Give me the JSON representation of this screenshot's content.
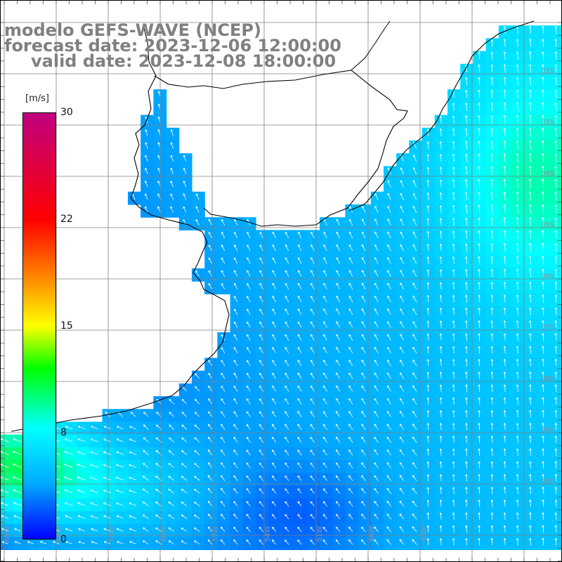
{
  "title_line1": "modelo GEFS-WAVE (NCEP)",
  "title_line2": "forecast date: 2023-12-06 12:00:00",
  "title_line3": "valid date: 2023-12-08 18:00:00",
  "colorbar": {
    "units": "[m/s]",
    "min": 0,
    "max": 30,
    "ticks": [
      {
        "value": 30,
        "label": "30"
      },
      {
        "value": 22,
        "label": "22"
      },
      {
        "value": 15,
        "label": "15"
      },
      {
        "value": 8,
        "label": "8"
      },
      {
        "value": 0,
        "label": "0"
      }
    ]
  },
  "map": {
    "lon_labels": [
      "69W",
      "66W",
      "63W",
      "60W",
      "57W",
      "54W",
      "51W",
      "48W",
      "45W"
    ],
    "lat_labels": [
      "32S",
      "33S",
      "34S",
      "35S",
      "36S",
      "37S",
      "38S",
      "39S",
      "40S"
    ]
  },
  "colors": {
    "land": "#ffffff",
    "grid": "#808080",
    "coast": "#000000",
    "title": "#808080"
  }
}
